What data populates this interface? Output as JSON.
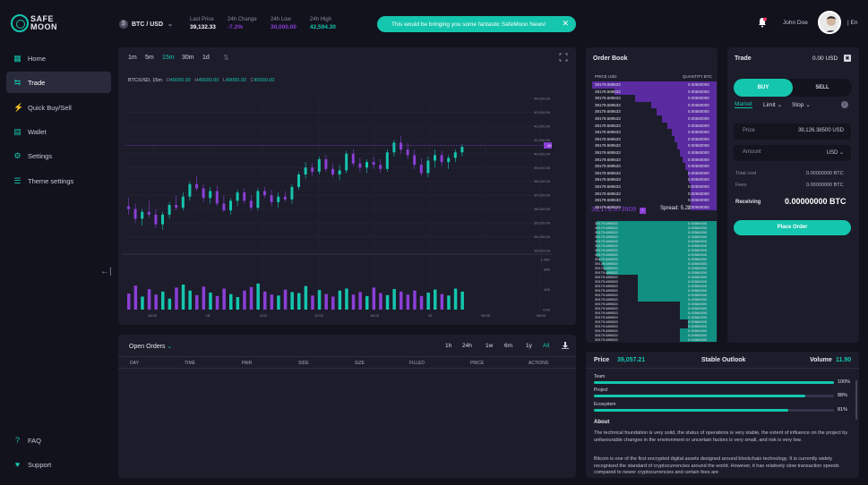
{
  "brand": {
    "line1": "SAFE",
    "line2": "MOON"
  },
  "sidebar": {
    "items": [
      {
        "label": "Home",
        "icon": "grid-icon"
      },
      {
        "label": "Trade",
        "icon": "swap-icon",
        "active": true
      },
      {
        "label": "Quick Buy/Sell",
        "icon": "bolt-icon"
      },
      {
        "label": "Wallet",
        "icon": "wallet-icon"
      },
      {
        "label": "Settings",
        "icon": "gear-icon"
      },
      {
        "label": "Theme settings",
        "icon": "sliders-icon"
      }
    ],
    "bottom": [
      {
        "label": "FAQ",
        "icon": "question-icon"
      },
      {
        "label": "Support",
        "icon": "heart-hand-icon"
      }
    ]
  },
  "header": {
    "pair": "BTC / USD",
    "stats": [
      {
        "label": "Last Price",
        "value": "39,132.33",
        "color": "#ffffff"
      },
      {
        "label": "24h Change",
        "value": "-7.2%",
        "color": "#8b3fd6"
      },
      {
        "label": "24h Low",
        "value": "30,000.00",
        "color": "#8b3fd6"
      },
      {
        "label": "24h High",
        "value": "42,594.30",
        "color": "#14c6ad"
      }
    ],
    "toast": "This would be bringing you some fantastic SafeMoon News!",
    "user": "John Doe",
    "lang": "| En"
  },
  "chart": {
    "timeframes": [
      "1m",
      "5m",
      "15m",
      "30m",
      "1d"
    ],
    "active_tf": "15m",
    "ohlc": {
      "symbol": "BTC/USD, 15m",
      "o": "40000.00",
      "h": "40000.00",
      "l": "40000.00",
      "c": "40000.00"
    },
    "price_ticks": [
      "44,000.00",
      "43,000.00",
      "42,000.00",
      "41,000.00",
      "40,000.00",
      "39,000.00",
      "38,000.00",
      "37,000.00",
      "36,000.00",
      "35,000.00",
      "34,000.00",
      "33,000.00"
    ],
    "current_price": "40,605.80",
    "volume_ticks": [
      "1.00K",
      "800",
      "400",
      "0.00"
    ],
    "time_ticks": [
      "18:00",
      "18",
      "6:00",
      "12:00",
      "18:00",
      "19",
      "06:00",
      "06:00"
    ]
  },
  "chart_data": {
    "type": "candlestick",
    "candles": [
      [
        36200,
        36800,
        35600,
        36000
      ],
      [
        36000,
        36400,
        35000,
        35300
      ],
      [
        35300,
        36000,
        34800,
        35800
      ],
      [
        35800,
        36600,
        35400,
        35600
      ],
      [
        35600,
        36000,
        34600,
        34900
      ],
      [
        34900,
        35800,
        34500,
        35600
      ],
      [
        35600,
        36500,
        35300,
        36300
      ],
      [
        36300,
        37000,
        35900,
        36100
      ],
      [
        36100,
        37200,
        35900,
        36900
      ],
      [
        36900,
        38000,
        36600,
        37800
      ],
      [
        37800,
        38400,
        37300,
        37500
      ],
      [
        37500,
        37800,
        36500,
        36800
      ],
      [
        36800,
        37600,
        36400,
        37300
      ],
      [
        37300,
        37700,
        36200,
        36400
      ],
      [
        36400,
        37000,
        35800,
        35900
      ],
      [
        35900,
        36800,
        35600,
        36600
      ],
      [
        36600,
        37400,
        36200,
        37200
      ],
      [
        37200,
        37500,
        36400,
        36600
      ],
      [
        36600,
        37000,
        35900,
        36100
      ],
      [
        36100,
        37500,
        35900,
        37300
      ],
      [
        37300,
        37600,
        36800,
        37000
      ],
      [
        37000,
        37400,
        36200,
        36500
      ],
      [
        36500,
        37200,
        36100,
        36900
      ],
      [
        36900,
        37300,
        36500,
        36700
      ],
      [
        36700,
        37800,
        36400,
        37600
      ],
      [
        37600,
        38700,
        37400,
        38500
      ],
      [
        38500,
        39400,
        38200,
        39000
      ],
      [
        39000,
        39300,
        38400,
        38700
      ],
      [
        38700,
        39800,
        38500,
        39600
      ],
      [
        39600,
        39900,
        38700,
        38900
      ],
      [
        38900,
        39300,
        38300,
        38500
      ],
      [
        38500,
        39200,
        38100,
        38800
      ],
      [
        38800,
        40200,
        38600,
        40000
      ],
      [
        40000,
        40300,
        39100,
        39300
      ],
      [
        39300,
        39700,
        38700,
        39000
      ],
      [
        39000,
        39600,
        38600,
        39400
      ],
      [
        39400,
        39800,
        38900,
        39200
      ],
      [
        39200,
        39600,
        38600,
        38900
      ],
      [
        38900,
        40300,
        38700,
        40100
      ],
      [
        40100,
        41000,
        39800,
        40800
      ],
      [
        40800,
        41300,
        40000,
        40300
      ],
      [
        40300,
        40800,
        39600,
        39900
      ],
      [
        39900,
        40300,
        38900,
        39200
      ],
      [
        39200,
        39700,
        38400,
        38600
      ],
      [
        38600,
        39800,
        38300,
        39500
      ],
      [
        39500,
        40300,
        39000,
        39900
      ],
      [
        39900,
        40200,
        39100,
        39400
      ],
      [
        39400,
        39900,
        38900,
        39700
      ],
      [
        39700,
        40300,
        39400,
        40100
      ],
      [
        40100,
        40700,
        39800,
        40500
      ]
    ],
    "volumes": [
      320,
      480,
      260,
      410,
      300,
      360,
      220,
      440,
      500,
      380,
      290,
      460,
      340,
      270,
      420,
      310,
      250,
      380,
      450,
      520,
      360,
      300,
      280,
      400,
      350,
      330,
      470,
      280,
      390,
      310,
      260,
      380,
      420,
      300,
      350,
      270,
      440,
      330,
      290,
      410,
      360,
      300,
      380,
      270,
      340,
      400,
      310,
      280,
      420,
      360
    ]
  },
  "order_book": {
    "title": "Order Book",
    "col_price": "PRICE USD",
    "col_qty": "QUANTITY BTC",
    "ask_price": "39179.689533",
    "ask_qty": "0.00560000",
    "ask_depth": [
      0.95,
      0.78,
      0.62,
      0.5,
      0.46,
      0.42,
      0.38,
      0.34,
      0.32,
      0.3,
      0.28,
      0.26,
      0.24,
      0.22,
      0.21,
      0.2,
      0.2,
      0.2,
      0.2
    ],
    "mid_price": "39,179.873909",
    "spread_label": "Spread:",
    "spread_value": "5.22334005",
    "bid_depth": [
      0.92,
      0.92,
      0.92,
      0.92,
      0.92,
      0.92,
      0.92,
      0.92,
      0.9,
      0.88,
      0.86,
      0.84,
      0.6,
      0.6,
      0.6,
      0.6,
      0.6,
      0.6,
      0.28,
      0.28,
      0.28,
      0.28,
      0.22,
      0.22,
      0.28,
      0.28,
      0.28
    ]
  },
  "trade": {
    "title": "Trade",
    "balance": "0.00 USD",
    "buy": "BUY",
    "sell": "SELL",
    "order_types": [
      "Market",
      "Limit",
      "Stop"
    ],
    "price_label": "Price",
    "price_value": "39,126.38500 USD",
    "amount_placeholder": "Amount",
    "amount_unit": "USD",
    "total_label": "Total cost",
    "total_value": "0.00000000 BTC",
    "fees_label": "Fees",
    "fees_value": "0.00000000 BTC",
    "receiving_label": "Receiving",
    "receiving_value": "0.00000000 BTC",
    "place_order": "Place Order"
  },
  "open_orders": {
    "title": "Open Orders",
    "ranges": [
      "1h",
      "24h",
      "1w",
      "6m",
      "1y",
      "All"
    ],
    "columns": [
      "DAY",
      "TIME",
      "PAIR",
      "SIDE",
      "SIZE",
      "FILLED",
      "PRICE",
      "ACTIONS"
    ]
  },
  "stats": {
    "price_label": "Price",
    "price_value": "39,057.21",
    "outlook": "Stable Outlook",
    "volume_label": "Volume",
    "volume_value": "11.90",
    "bars": [
      {
        "label": "Team",
        "pct": "100%",
        "value": 1.0
      },
      {
        "label": "Project",
        "pct": "88%",
        "value": 0.88
      },
      {
        "label": "Ecosystem",
        "pct": "81%",
        "value": 0.81
      }
    ],
    "about_title": "About",
    "about_p1": "The technical foundation is very solid, the status of operations is very stable, the extent of influence on the project by unfavourable changes in the environment or uncertain factors is very small, and risk is very low.",
    "about_p2": "Bitcoin is one of the first encrypted digital assets designed around blockchain technology. It is currently widely recognised the standard of cryptocurrencies around the world. However, it has relatively slow transaction speeds compared to newer cryptocurrencies and certain fees are"
  },
  "colors": {
    "teal": "#14c6ad",
    "purple": "#8b3fd6",
    "bg": "#12121d",
    "panel": "#1c1c2b"
  }
}
